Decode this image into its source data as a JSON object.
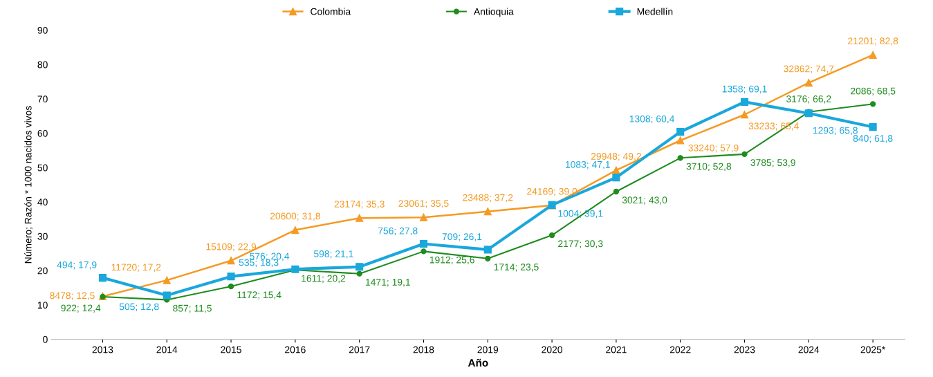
{
  "chart_data": {
    "type": "line",
    "xlabel": "Año",
    "ylabel": "Número; Razón * 1000 nacidos vivos",
    "categories": [
      "2013",
      "2014",
      "2015",
      "2016",
      "2017",
      "2018",
      "2019",
      "2020",
      "2021",
      "2022",
      "2023",
      "2024",
      "2025*"
    ],
    "ylim": [
      0,
      90
    ],
    "yticks": [
      0,
      10,
      20,
      30,
      40,
      50,
      60,
      70,
      80,
      90
    ],
    "grid": false,
    "legend": "top",
    "series": [
      {
        "name": "Colombia",
        "color": "#f59a23",
        "marker": "triangle",
        "values": [
          12.5,
          17.2,
          22.9,
          31.8,
          35.3,
          35.5,
          37.2,
          39.0,
          49.2,
          57.9,
          65.4,
          74.7,
          82.8
        ],
        "value_labels": [
          "8478; 12,5",
          "11720; 17,2",
          "15109; 22,9",
          "20600; 31,8",
          "23174; 35,3",
          "23061; 35,5",
          "23488; 37,2",
          "24169; 39,0",
          "29948; 49,2",
          "33240; 57,9",
          "33233; 65,4",
          "32862; 74,7",
          "21201; 82,8"
        ]
      },
      {
        "name": "Antioquia",
        "color": "#1e8c1e",
        "marker": "circle",
        "values": [
          12.4,
          11.5,
          15.4,
          20.2,
          19.1,
          25.6,
          23.5,
          30.3,
          43.0,
          52.8,
          53.9,
          66.2,
          68.5
        ],
        "value_labels": [
          "922; 12,4",
          "857; 11,5",
          "1172; 15,4",
          "1611; 20,2",
          "1471; 19,1",
          "1912; 25,6",
          "1714; 23,5",
          "2177; 30,3",
          "3021; 43,0",
          "3710; 52,8",
          "3785; 53,9",
          "3176; 66,2",
          "2086; 68,5"
        ]
      },
      {
        "name": "Medellín",
        "color": "#1aa7dc",
        "marker": "square",
        "values": [
          17.9,
          12.8,
          18.3,
          20.4,
          21.1,
          27.8,
          26.1,
          39.1,
          47.1,
          60.4,
          69.1,
          65.8,
          61.8
        ],
        "value_labels": [
          "494; 17,9",
          "505; 12,8",
          "535; 18,3",
          "576; 20,4",
          "598; 21,1",
          "756; 27,8",
          "709; 26,1",
          "1004; 39,1",
          "1083; 47,1",
          "1308; 60,4",
          "1358; 69,1",
          "1293; 65,8",
          "840; 61,8"
        ]
      }
    ]
  }
}
